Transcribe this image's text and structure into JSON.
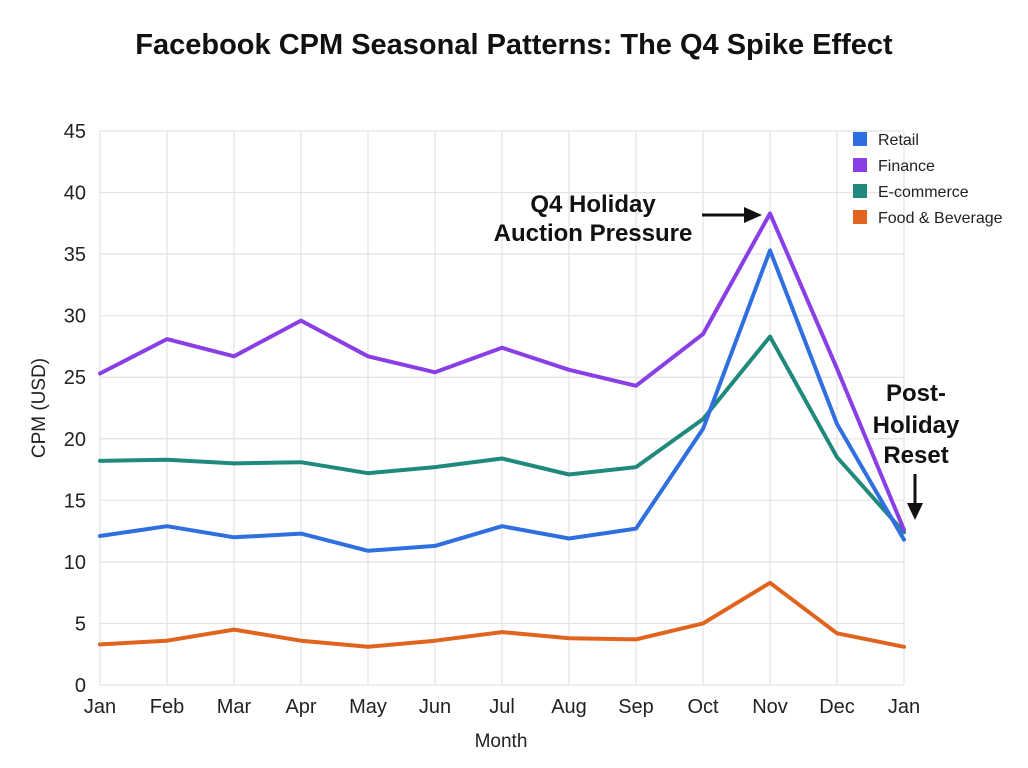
{
  "chart_data": {
    "type": "line",
    "title": "Facebook CPM Seasonal Patterns: The Q4 Spike Effect",
    "xlabel": "Month",
    "ylabel": "CPM (USD)",
    "ylim": [
      0,
      45
    ],
    "yticks": [
      0,
      5,
      10,
      15,
      20,
      25,
      30,
      35,
      40,
      45
    ],
    "categories": [
      "Jan",
      "Feb",
      "Mar",
      "Apr",
      "May",
      "Jun",
      "Jul",
      "Aug",
      "Sep",
      "Oct",
      "Nov",
      "Dec",
      "Jan"
    ],
    "grid": true,
    "legend_position": "top-right",
    "series": [
      {
        "name": "Retail",
        "color": "#2f6fe0",
        "values": [
          12.1,
          12.9,
          12.0,
          12.3,
          10.9,
          11.3,
          12.9,
          11.9,
          12.7,
          20.8,
          35.3,
          21.2,
          11.8
        ]
      },
      {
        "name": "Finance",
        "color": "#8a3ee6",
        "values": [
          25.3,
          28.1,
          26.7,
          29.6,
          26.7,
          25.4,
          27.4,
          25.6,
          24.3,
          28.5,
          38.3,
          25.7,
          12.6
        ]
      },
      {
        "name": "E-commerce",
        "color": "#1f8a7c",
        "values": [
          18.2,
          18.3,
          18.0,
          18.1,
          17.2,
          17.7,
          18.4,
          17.1,
          17.7,
          21.6,
          28.3,
          18.5,
          12.4
        ]
      },
      {
        "name": "Food & Beverage",
        "color": "#e0641e",
        "values": [
          3.3,
          3.6,
          4.5,
          3.6,
          3.1,
          3.6,
          4.3,
          3.8,
          3.7,
          5.0,
          8.3,
          4.2,
          3.1
        ]
      }
    ],
    "annotations": [
      {
        "lines": [
          "Q4 Holiday",
          "Auction Pressure"
        ],
        "points_to": "Nov"
      },
      {
        "lines": [
          "Post-",
          "Holiday",
          "Reset"
        ],
        "points_to": "Jan"
      }
    ]
  }
}
